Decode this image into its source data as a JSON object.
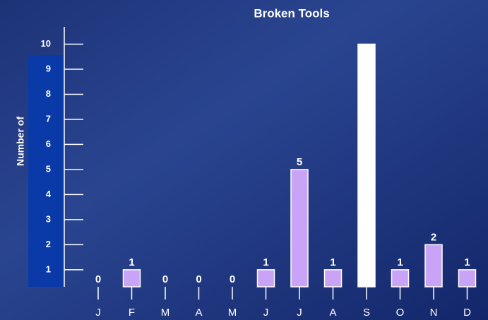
{
  "chart_data": {
    "type": "bar",
    "title": "Broken Tools",
    "y_label": "Number of",
    "categories": [
      "J",
      "F",
      "M",
      "A",
      "M",
      "J",
      "J",
      "A",
      "S",
      "O",
      "N",
      "D"
    ],
    "values": [
      0,
      1,
      0,
      0,
      0,
      1,
      5,
      1,
      10,
      1,
      2,
      1
    ],
    "value_labels": [
      "0",
      "1",
      "0",
      "0",
      "0",
      "1",
      "5",
      "1",
      null,
      "1",
      "2",
      "1"
    ],
    "colors": [
      "#c9a3f5",
      "#c9a3f5",
      "#c9a3f5",
      "#c9a3f5",
      "#c9a3f5",
      "#c9a3f5",
      "#c9a3f5",
      "#c9a3f5",
      "#ffffff",
      "#c9a3f5",
      "#c9a3f5",
      "#c9a3f5"
    ],
    "ylim": [
      0.32,
      10.69
    ],
    "yticks": [
      1,
      2,
      3,
      4,
      5,
      6,
      7,
      8,
      9,
      10
    ]
  }
}
